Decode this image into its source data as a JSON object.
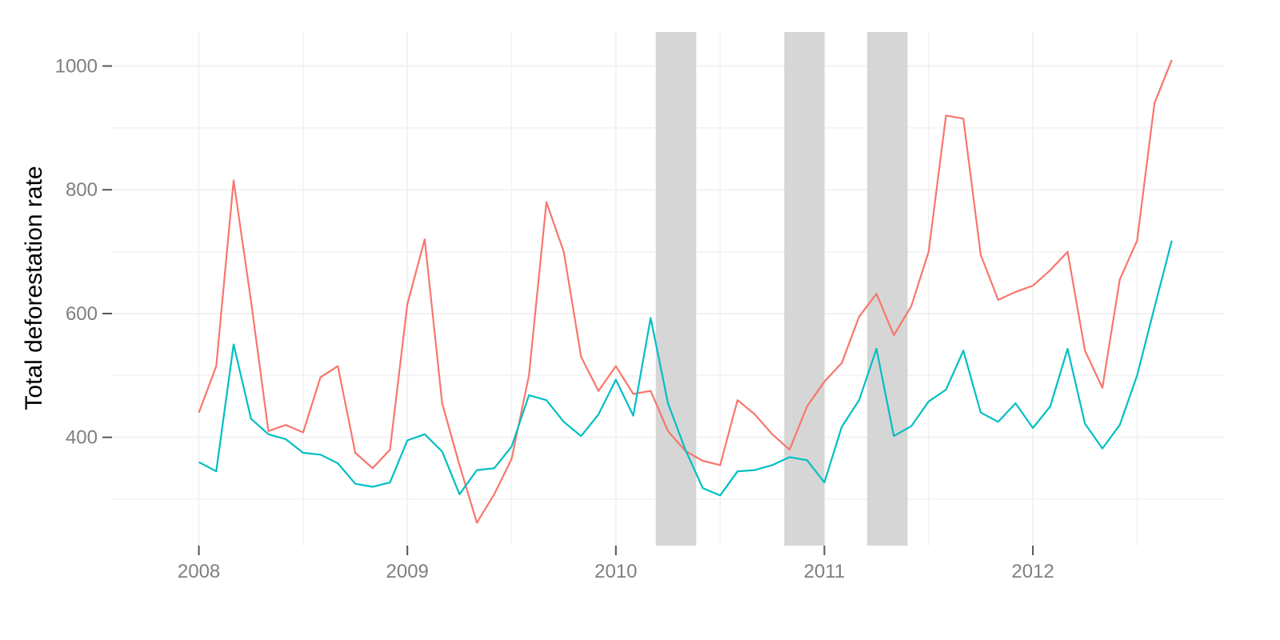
{
  "chart_data": {
    "type": "line",
    "title": "",
    "xlabel": "",
    "ylabel": "Total deforestation rate",
    "xlim": [
      "2007-08-01",
      "2012-12-01"
    ],
    "ylim": [
      225,
      1055
    ],
    "x_ticks": [
      {
        "date": "2008-01-01",
        "label": "2008"
      },
      {
        "date": "2009-01-01",
        "label": "2009"
      },
      {
        "date": "2010-01-01",
        "label": "2010"
      },
      {
        "date": "2011-01-01",
        "label": "2011"
      },
      {
        "date": "2012-01-01",
        "label": "2012"
      }
    ],
    "x_minor_grid": [
      "2008-07-01",
      "2009-07-01",
      "2010-07-01",
      "2011-07-01",
      "2012-07-01"
    ],
    "y_ticks": [
      400,
      600,
      800,
      1000
    ],
    "y_minor_grid": [
      300,
      500,
      700,
      900
    ],
    "grid": true,
    "legend": "none",
    "shaded_periods": [
      {
        "start": "2010-03-10",
        "end": "2010-05-20"
      },
      {
        "start": "2010-10-22",
        "end": "2011-01-01"
      },
      {
        "start": "2011-03-15",
        "end": "2011-05-25"
      }
    ],
    "shade_color": "#d6d6d6",
    "x": [
      "2008-01",
      "2008-02",
      "2008-03",
      "2008-04",
      "2008-05",
      "2008-06",
      "2008-07",
      "2008-08",
      "2008-09",
      "2008-10",
      "2008-11",
      "2008-12",
      "2009-01",
      "2009-02",
      "2009-03",
      "2009-04",
      "2009-05",
      "2009-06",
      "2009-07",
      "2009-08",
      "2009-09",
      "2009-10",
      "2009-11",
      "2009-12",
      "2010-01",
      "2010-02",
      "2010-03",
      "2010-04",
      "2010-05",
      "2010-06",
      "2010-07",
      "2010-08",
      "2010-09",
      "2010-10",
      "2010-11",
      "2010-12",
      "2011-01",
      "2011-02",
      "2011-03",
      "2011-04",
      "2011-05",
      "2011-06",
      "2011-07",
      "2011-08",
      "2011-09",
      "2011-10",
      "2011-11",
      "2011-12",
      "2012-01",
      "2012-02",
      "2012-03",
      "2012-04",
      "2012-05",
      "2012-06",
      "2012-07",
      "2012-08",
      "2012-09"
    ],
    "series": [
      {
        "color": "#f8766d",
        "values": [
          440,
          515,
          815,
          620,
          410,
          420,
          408,
          497,
          515,
          375,
          350,
          380,
          615,
          720,
          455,
          355,
          262,
          308,
          365,
          500,
          780,
          700,
          530,
          475,
          515,
          470,
          475,
          410,
          378,
          362,
          355,
          460,
          437,
          405,
          380,
          450,
          490,
          520,
          595,
          632,
          565,
          612,
          700,
          920,
          915,
          695,
          622,
          635,
          645,
          670,
          700,
          540,
          480,
          655,
          718,
          940,
          1010
        ]
      },
      {
        "color": "#00bfc4",
        "values": [
          360,
          345,
          550,
          430,
          405,
          397,
          375,
          372,
          358,
          325,
          320,
          327,
          395,
          405,
          377,
          308,
          347,
          350,
          385,
          468,
          460,
          425,
          402,
          437,
          493,
          435,
          593,
          455,
          380,
          318,
          306,
          345,
          347,
          355,
          368,
          363,
          327,
          417,
          460,
          543,
          402,
          418,
          458,
          477,
          540,
          440,
          425,
          455,
          415,
          450,
          543,
          422,
          382,
          420,
          500,
          610,
          718
        ]
      }
    ]
  }
}
